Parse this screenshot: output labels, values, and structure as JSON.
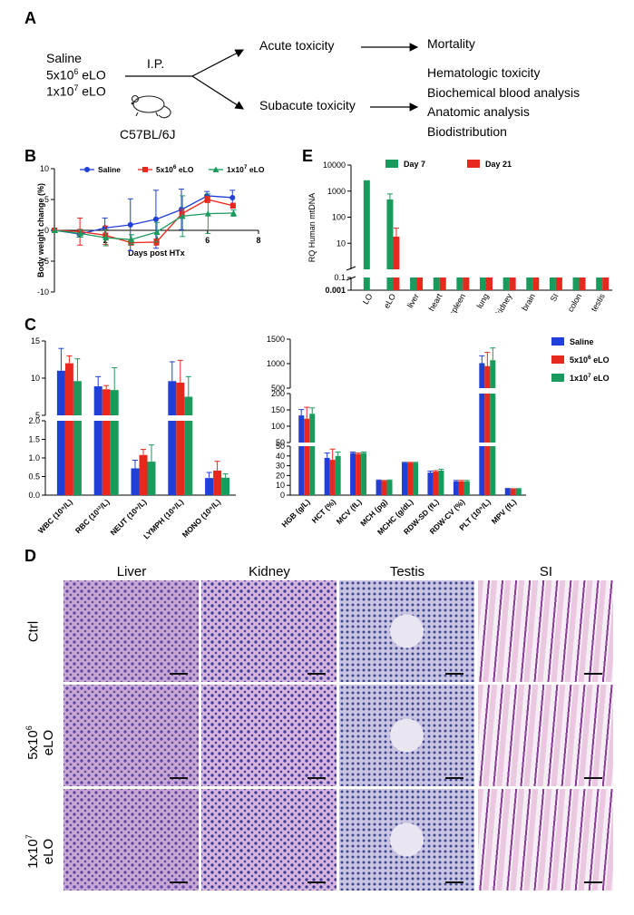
{
  "panels": {
    "A": "A",
    "B": "B",
    "C": "C",
    "D": "D",
    "E": "E"
  },
  "panelA": {
    "groups": [
      "Saline",
      "5x10",
      "eLO",
      "1x10",
      "eLO"
    ],
    "group_lines": [
      {
        "base": "Saline",
        "sup": "",
        "rest": ""
      },
      {
        "base": "5x10",
        "sup": "6",
        "rest": " eLO"
      },
      {
        "base": "1x10",
        "sup": "7",
        "rest": " eLO"
      }
    ],
    "route": "I.P.",
    "mouse_strain": "C57BL/6J",
    "acute": "Acute toxicity",
    "subacute": "Subacute toxicity",
    "acute_outcome": "Mortality",
    "subacute_outcomes": [
      "Hematologic toxicity",
      "Biochemical blood analysis",
      "Anatomic analysis",
      "Biodistribution"
    ]
  },
  "panelB": {
    "chart_data": {
      "type": "line",
      "xlabel": "Days post HTx",
      "ylabel": "Body weight change (%)",
      "xlim": [
        0,
        8
      ],
      "ylim": [
        -10,
        10
      ],
      "xticks": [
        "2",
        "4",
        "6",
        "8"
      ],
      "yticks": [
        "10",
        "5",
        "0",
        "-5",
        "-10"
      ],
      "x": [
        0,
        1,
        2,
        3,
        4,
        5,
        6,
        7
      ],
      "series": [
        {
          "name": "Saline",
          "color": "#1f3fd6",
          "marker": "circle",
          "values": [
            0,
            -0.6,
            0.4,
            0.9,
            1.8,
            3.4,
            5.6,
            5.3
          ],
          "errors": [
            0,
            0.5,
            1.6,
            4.2,
            4.7,
            3.3,
            0.7,
            1.2
          ]
        },
        {
          "name": "5x10⁶ eLO",
          "color": "#e8281e",
          "marker": "square",
          "values": [
            0,
            -0.2,
            -0.8,
            -2.0,
            -1.9,
            2.7,
            5.0,
            4.0
          ],
          "errors": [
            0,
            2.2,
            1.5,
            0.4,
            0.5,
            0.7,
            0.5,
            0.4
          ]
        },
        {
          "name": "1x10⁷ eLO",
          "color": "#1a9a5c",
          "marker": "triangle",
          "values": [
            0,
            -0.5,
            -1.2,
            -1.5,
            -0.3,
            2.3,
            2.7,
            2.8
          ],
          "errors": [
            0,
            0.6,
            1.3,
            0.8,
            1.6,
            3.3,
            3.2,
            0.5
          ]
        }
      ],
      "legend": [
        "Saline",
        "5x10",
        "eLO",
        "1x10",
        "eLO"
      ],
      "legend_sup": [
        "6",
        "7"
      ]
    }
  },
  "panelC1": {
    "chart_data": {
      "type": "bar",
      "categories": [
        "WBC (10⁹/L)",
        "RBC (10¹²/L)",
        "NEUT (10⁹/L)",
        "LYMPH (10⁹/L)",
        "MONO (10⁹/L)"
      ],
      "y_upper_ticks": [
        "15",
        "10",
        "5"
      ],
      "y_lower_ticks": [
        "2.0",
        "1.5",
        "1.0",
        "0.5",
        "0.0"
      ],
      "series": [
        {
          "name": "Saline",
          "values": [
            11.0,
            8.9,
            0.72,
            9.6,
            0.46
          ],
          "errors": [
            3.0,
            1.3,
            0.22,
            2.6,
            0.15
          ]
        },
        {
          "name": "5x10⁶ eLO",
          "values": [
            12.0,
            8.5,
            1.08,
            9.4,
            0.66
          ],
          "errors": [
            1.0,
            0.5,
            0.15,
            3.0,
            0.25
          ]
        },
        {
          "name": "1x10⁷ eLO",
          "values": [
            9.6,
            8.4,
            0.9,
            7.5,
            0.47
          ],
          "errors": [
            3.0,
            3.0,
            0.45,
            2.7,
            0.1
          ]
        }
      ]
    }
  },
  "panelC2": {
    "chart_data": {
      "type": "bar",
      "categories": [
        "HGB (g/L)",
        "HCT (%)",
        "MCV (fL)",
        "MCH (pg)",
        "MCHC (g/dL)",
        "RDW-SD (fL)",
        "RDW-CV (%)",
        "PLT (10⁹/L)",
        "MPV (fL)"
      ],
      "y_top_ticks": [
        "1500",
        "1000",
        "500"
      ],
      "y_mid_ticks": [
        "200",
        "150",
        "100",
        "50"
      ],
      "y_low_ticks": [
        "50",
        "40",
        "30",
        "20",
        "10",
        "0"
      ],
      "series": [
        {
          "name": "Saline",
          "values": [
            133,
            38,
            43,
            15,
            33,
            23,
            14,
            1010,
            6.5
          ],
          "errors": [
            18,
            5,
            1,
            0.5,
            0.5,
            1.5,
            1,
            150,
            0.3
          ]
        },
        {
          "name": "5x10⁶ eLO",
          "values": [
            123,
            36,
            42,
            14.5,
            33,
            24,
            14,
            950,
            6.3
          ],
          "errors": [
            35,
            11,
            1,
            0.5,
            0.5,
            1,
            1,
            280,
            0.3
          ]
        },
        {
          "name": "1x10⁷ eLO",
          "values": [
            138,
            40,
            43,
            15,
            33,
            25,
            14,
            1070,
            6.4
          ],
          "errors": [
            18,
            4,
            1,
            0.5,
            0.5,
            1.5,
            1,
            250,
            0.3
          ]
        }
      ],
      "legend": [
        "Saline",
        "5x10",
        "eLO",
        "1x10",
        "eLO"
      ],
      "legend_sup": [
        "6",
        "7"
      ]
    }
  },
  "panelE": {
    "chart_data": {
      "type": "bar",
      "ylabel": "RQ Human mtDNA",
      "yscale": "log",
      "yticks": [
        "10000",
        "1000",
        "100",
        "10",
        "0.1",
        "0.001"
      ],
      "categories": [
        "LO",
        "eLO",
        "liver",
        "heart",
        "spleen",
        "lung",
        "kidney",
        "brain",
        "SI",
        "colon",
        "testis"
      ],
      "series": [
        {
          "name": "Day 7",
          "values": [
            2600,
            480,
            0.1,
            0.1,
            0.1,
            0.1,
            0.1,
            0.1,
            0.1,
            0.1,
            0.1
          ],
          "errors": [
            0,
            300,
            0,
            0,
            0,
            0,
            0,
            0,
            0,
            0,
            0
          ]
        },
        {
          "name": "Day 21",
          "values": [
            null,
            18,
            0.1,
            0.1,
            0.1,
            0.1,
            0.1,
            0.1,
            0.1,
            0.1,
            0.1
          ],
          "errors": [
            0,
            20,
            0,
            0,
            0,
            0,
            0,
            0,
            0,
            0,
            0
          ]
        }
      ],
      "legend": [
        "Day 7",
        "Day 21"
      ]
    }
  },
  "panelD": {
    "columns": [
      "Liver",
      "Kidney",
      "Testis",
      "SI"
    ],
    "rows": [
      {
        "line1": "Ctrl",
        "line2": ""
      },
      {
        "line1": "5x10",
        "sup": "6",
        "line2": "eLO"
      },
      {
        "line1": "1x10",
        "sup": "7",
        "line2": "eLO"
      }
    ]
  },
  "colors": {
    "saline": "#1f3fd6",
    "eLO_low": "#e8281e",
    "eLO_high": "#1a9a5c",
    "day7": "#1a9a5c",
    "day21": "#e8281e"
  }
}
